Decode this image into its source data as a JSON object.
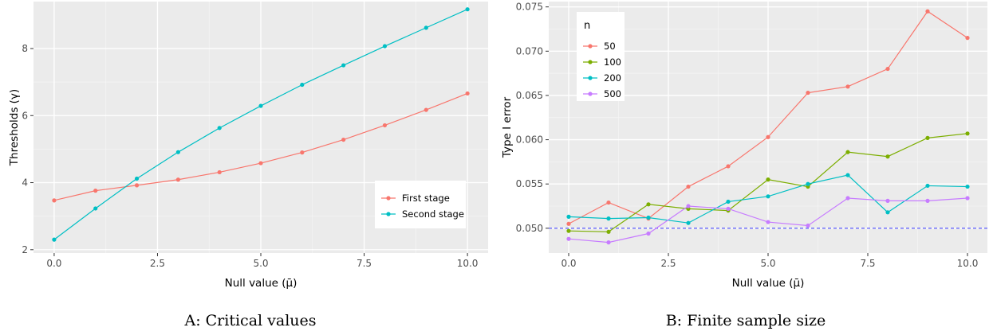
{
  "captions": [
    "A: Critical values",
    "B: Finite sample size"
  ],
  "chart_data": [
    {
      "type": "line",
      "xlabel": "Null value (μ̄)",
      "ylabel": "Thresholds (γ)",
      "xlim": [
        -0.5,
        10.5
      ],
      "ylim": [
        1.9,
        9.4
      ],
      "xticks": [
        0.0,
        2.5,
        5.0,
        7.5,
        10.0
      ],
      "xtick_labels": [
        "0.0",
        "2.5",
        "5.0",
        "7.5",
        "10.0"
      ],
      "yticks": [
        2,
        4,
        6,
        8
      ],
      "ytick_labels": [
        "2",
        "4",
        "6",
        "8"
      ],
      "grid": true,
      "legend_position": "bottom-right",
      "legend_title": "",
      "x": [
        0,
        1,
        2,
        3,
        4,
        5,
        6,
        7,
        8,
        9,
        10
      ],
      "series": [
        {
          "name": "First stage",
          "color": "#F8766D",
          "values": [
            3.47,
            3.76,
            3.92,
            4.09,
            4.31,
            4.58,
            4.9,
            5.28,
            5.71,
            6.17,
            6.66
          ]
        },
        {
          "name": "Second stage",
          "color": "#00BFC4",
          "values": [
            2.3,
            3.23,
            4.12,
            4.91,
            5.63,
            6.29,
            6.92,
            7.5,
            8.07,
            8.62,
            9.17
          ]
        }
      ]
    },
    {
      "type": "line",
      "xlabel": "Null value (μ̄)",
      "ylabel": "Type I error",
      "xlim": [
        -0.5,
        10.5
      ],
      "ylim": [
        0.0472,
        0.0756
      ],
      "xticks": [
        0.0,
        2.5,
        5.0,
        7.5,
        10.0
      ],
      "xtick_labels": [
        "0.0",
        "2.5",
        "5.0",
        "7.5",
        "10.0"
      ],
      "yticks": [
        0.05,
        0.055,
        0.06,
        0.065,
        0.07,
        0.075
      ],
      "ytick_labels": [
        "0.050",
        "0.055",
        "0.060",
        "0.065",
        "0.070",
        "0.075"
      ],
      "grid": true,
      "legend_position": "top-left",
      "legend_title": "n",
      "reference_line": {
        "y": 0.05,
        "color": "#3333ff",
        "style": "dashed"
      },
      "x": [
        0,
        1,
        2,
        3,
        4,
        5,
        6,
        7,
        8,
        9,
        10
      ],
      "series": [
        {
          "name": "50",
          "color": "#F8766D",
          "values": [
            0.0505,
            0.0529,
            0.0511,
            0.0547,
            0.057,
            0.0603,
            0.0653,
            0.066,
            0.068,
            0.0745,
            0.0715
          ]
        },
        {
          "name": "100",
          "color": "#7CAE00",
          "values": [
            0.0497,
            0.0496,
            0.0527,
            0.0522,
            0.052,
            0.0555,
            0.0547,
            0.0586,
            0.0581,
            0.0602,
            0.0607
          ]
        },
        {
          "name": "200",
          "color": "#00BFC4",
          "values": [
            0.0513,
            0.0511,
            0.0512,
            0.0506,
            0.053,
            0.0536,
            0.055,
            0.056,
            0.0518,
            0.0548,
            0.0547
          ]
        },
        {
          "name": "500",
          "color": "#C77CFF",
          "values": [
            0.0488,
            0.0484,
            0.0494,
            0.0525,
            0.0522,
            0.0507,
            0.0503,
            0.0534,
            0.0531,
            0.0531,
            0.0534
          ]
        }
      ]
    }
  ]
}
